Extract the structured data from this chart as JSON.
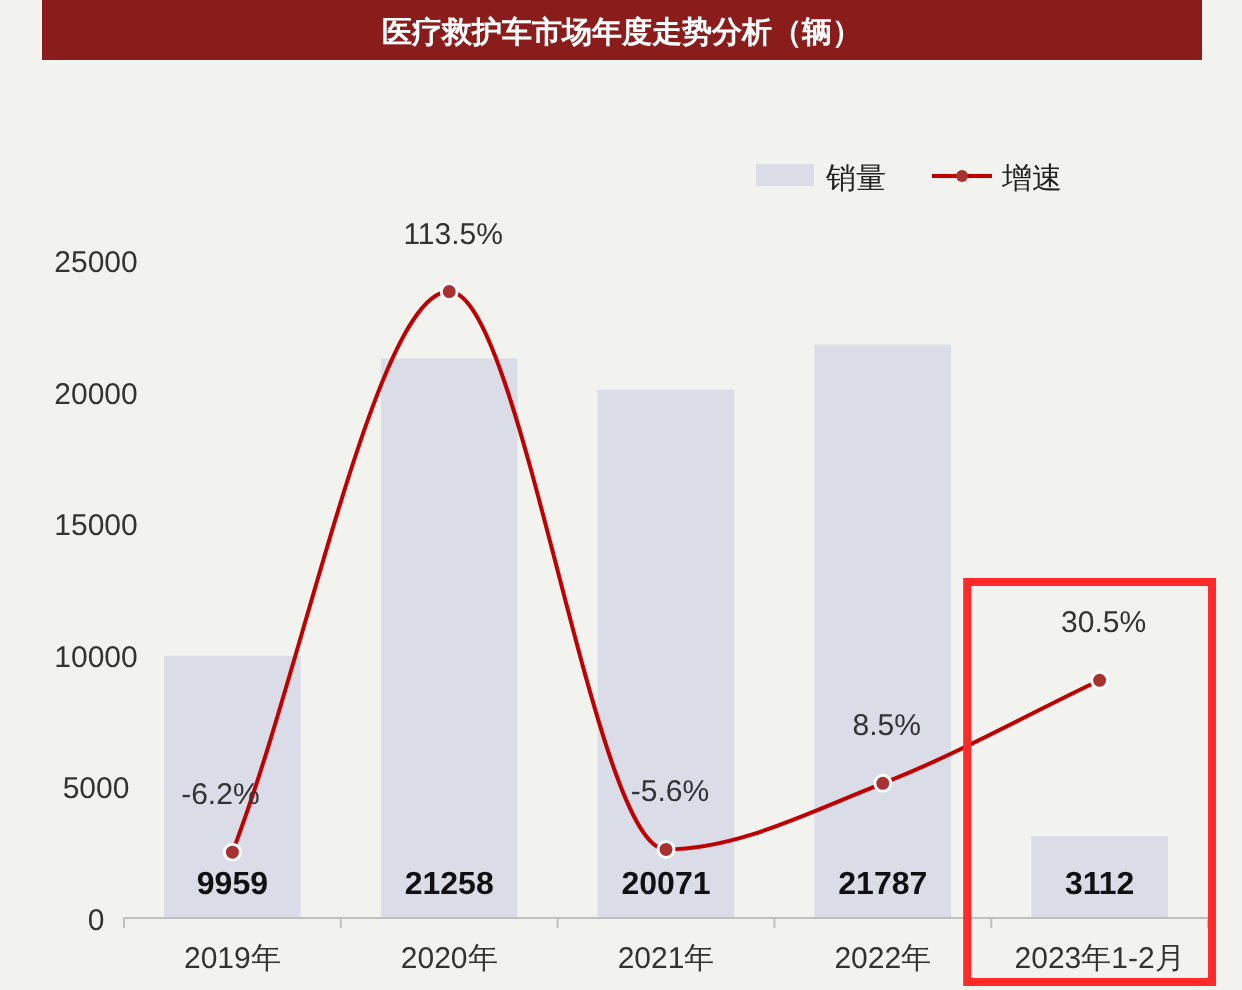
{
  "chart_data": {
    "type": "bar",
    "title": "医疗救护车市场年度走势分析（辆）",
    "categories": [
      "2019年",
      "2020年",
      "2021年",
      "2022年",
      "2023年1-2月"
    ],
    "series": [
      {
        "name": "销量",
        "color": "#dadce8",
        "values": [
          9959,
          21258,
          20071,
          21787,
          3112
        ],
        "value_labels": [
          "9959",
          "21258",
          "20071",
          "21787",
          "3112"
        ]
      },
      {
        "name": "增速",
        "type": "line",
        "axis": "y2",
        "color": "#c00000",
        "marker": "circle",
        "values": [
          -6.2,
          113.5,
          -5.6,
          8.5,
          30.5
        ],
        "value_labels": [
          "-6.2%",
          "113.5%",
          "-5.6%",
          "8.5%",
          "30.5%"
        ]
      }
    ],
    "ylim": [
      0,
      25000
    ],
    "yticks": [
      0,
      5000,
      10000,
      15000,
      20000,
      25000
    ],
    "tick_labels": "y",
    "grid": false,
    "legend": "top right"
  }
}
